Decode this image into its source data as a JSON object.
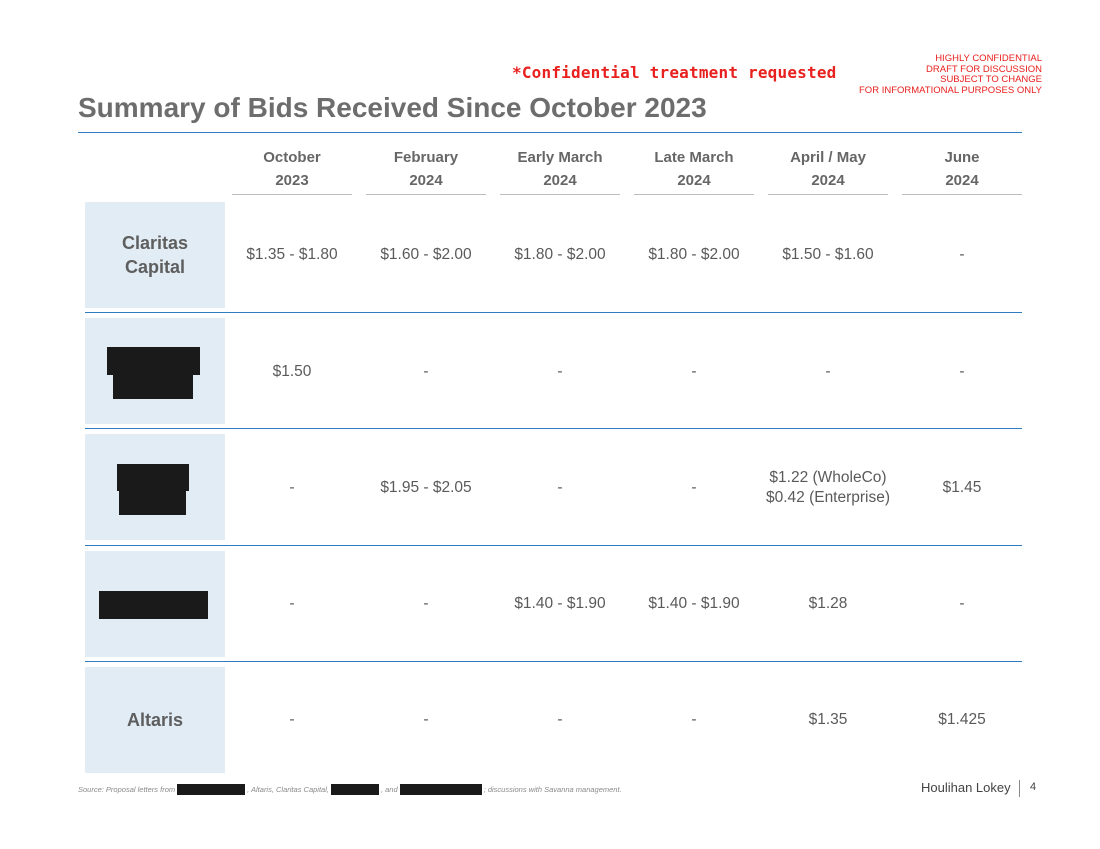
{
  "header": {
    "confidential_note": "*Confidential treatment requested",
    "stamp_lines": [
      "HIGHLY CONFIDENTIAL",
      "DRAFT FOR DISCUSSION",
      "SUBJECT TO CHANGE",
      "FOR INFORMATIONAL PURPOSES ONLY"
    ],
    "title": "Summary of Bids Received Since October 2023",
    "accent_color": "#e8201e",
    "rule_color": "#2f7dbe"
  },
  "table": {
    "columns": [
      {
        "line1": "October",
        "line2": "2023"
      },
      {
        "line1": "February",
        "line2": "2024"
      },
      {
        "line1": "Early March",
        "line2": "2024"
      },
      {
        "line1": "Late March",
        "line2": "2024"
      },
      {
        "line1": "April / May",
        "line2": "2024"
      },
      {
        "line1": "June",
        "line2": "2024"
      }
    ],
    "rows": [
      {
        "label": "Claritas\nCapital",
        "redacted": false,
        "cells": [
          "$1.35 - $1.80",
          "$1.60 - $2.00",
          "$1.80 - $2.00",
          "$1.80 - $2.00",
          "$1.50 - $1.60",
          "-"
        ]
      },
      {
        "label": "",
        "redacted": true,
        "cells": [
          "$1.50",
          "-",
          "-",
          "-",
          "-",
          "-"
        ]
      },
      {
        "label": "",
        "redacted": true,
        "cells": [
          "-",
          "$1.95 - $2.05",
          "-",
          "-",
          "$1.22 (WholeCo)\n$0.42 (Enterprise)",
          "$1.45"
        ]
      },
      {
        "label": "",
        "redacted": true,
        "cells": [
          "-",
          "-",
          "$1.40 - $1.90",
          "$1.40 - $1.90",
          "$1.28",
          "-"
        ]
      },
      {
        "label": "Altaris",
        "redacted": false,
        "cells": [
          "-",
          "-",
          "-",
          "-",
          "$1.35",
          "$1.425"
        ]
      }
    ]
  },
  "footer": {
    "source_parts": [
      "Source: Proposal letters from",
      ", Altaris, Claritas Capital,",
      ", and",
      "; discussions with Savanna management."
    ],
    "brand": "Houlihan Lokey",
    "page_number": "4"
  }
}
